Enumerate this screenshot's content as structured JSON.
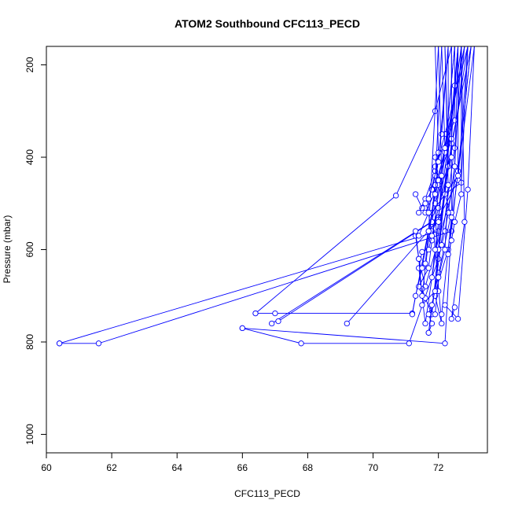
{
  "chart_data": {
    "type": "line",
    "title": "ATOM2 Southbound CFC113_PECD",
    "xlabel": "CFC113_PECD",
    "ylabel": "Pressure (mbar)",
    "xlim": [
      60,
      73.5
    ],
    "ylim": [
      1040,
      160
    ],
    "y_reversed": true,
    "x_ticks": [
      60,
      62,
      64,
      66,
      68,
      70,
      72
    ],
    "y_ticks": [
      200,
      400,
      600,
      800,
      1000
    ],
    "grid": false,
    "legend": "none",
    "series_color": "#0000ff",
    "marker": "open-circle",
    "series": [
      {
        "x": [
          60.4,
          61.6,
          72.4,
          73.0
        ],
        "y": [
          803,
          803,
          560,
          160
        ]
      },
      {
        "x": [
          60.4,
          72.0,
          72.9
        ],
        "y": [
          803,
          560,
          160
        ]
      },
      {
        "x": [
          66.0,
          67.8,
          71.1,
          72.0,
          72.6
        ],
        "y": [
          770,
          803,
          803,
          620,
          160
        ]
      },
      {
        "x": [
          66.0,
          72.2,
          72.7
        ],
        "y": [
          770,
          803,
          160
        ]
      },
      {
        "x": [
          66.4,
          67.0,
          71.2,
          72.8
        ],
        "y": [
          738,
          738,
          738,
          160
        ]
      },
      {
        "x": [
          66.9,
          72.0,
          72.7
        ],
        "y": [
          760,
          530,
          160
        ]
      },
      {
        "x": [
          67.1,
          71.8,
          72.8
        ],
        "y": [
          755,
          540,
          160
        ]
      },
      {
        "x": [
          69.2,
          72.0,
          72.5
        ],
        "y": [
          760,
          535,
          160
        ]
      },
      {
        "x": [
          66.4,
          70.7,
          71.9,
          72.4
        ],
        "y": [
          738,
          483,
          300,
          160
        ]
      },
      {
        "x": [
          71.3,
          71.5,
          71.9,
          72.2,
          72.9
        ],
        "y": [
          480,
          510,
          430,
          350,
          160
        ]
      },
      {
        "x": [
          71.3,
          71.4,
          71.6,
          72.6,
          73.0
        ],
        "y": [
          570,
          620,
          680,
          430,
          160
        ]
      },
      {
        "x": [
          71.4,
          71.6,
          71.8,
          72.6,
          72.9
        ],
        "y": [
          520,
          490,
          560,
          450,
          160
        ]
      },
      {
        "x": [
          71.5,
          71.6,
          71.8,
          72.5,
          72.6
        ],
        "y": [
          685,
          705,
          740,
          245,
          160
        ]
      },
      {
        "x": [
          71.5,
          71.4,
          71.6,
          72.4,
          73.0
        ],
        "y": [
          605,
          640,
          760,
          370,
          160
        ]
      },
      {
        "x": [
          71.7,
          71.8,
          71.7,
          72.3,
          73.1
        ],
        "y": [
          780,
          760,
          740,
          600,
          160
        ]
      },
      {
        "x": [
          71.8,
          71.7,
          72.5,
          72.8
        ],
        "y": [
          720,
          780,
          380,
          160
        ]
      },
      {
        "x": [
          71.9,
          72.1,
          71.8,
          72.6,
          72.6
        ],
        "y": [
          700,
          760,
          520,
          440,
          160
        ]
      },
      {
        "x": [
          72.0,
          71.8,
          72.4,
          72.4
        ],
        "y": [
          650,
          720,
          520,
          160
        ]
      },
      {
        "x": [
          72.1,
          72.4,
          72.2,
          72.7,
          72.9
        ],
        "y": [
          740,
          530,
          480,
          455,
          160
        ]
      },
      {
        "x": [
          72.2,
          72.6,
          72.9,
          73.1
        ],
        "y": [
          720,
          750,
          470,
          160
        ]
      },
      {
        "x": [
          72.5,
          72.4,
          72.8,
          72.7
        ],
        "y": [
          725,
          750,
          540,
          160
        ]
      },
      {
        "x": [
          71.6,
          72.0,
          71.9,
          72.5,
          72.5
        ],
        "y": [
          520,
          460,
          420,
          320,
          160
        ]
      },
      {
        "x": [
          71.8,
          71.9,
          72.2,
          72.5
        ],
        "y": [
          540,
          460,
          390,
          160
        ]
      },
      {
        "x": [
          72.0,
          71.9,
          72.3,
          72.3
        ],
        "y": [
          690,
          500,
          420,
          160
        ]
      },
      {
        "x": [
          71.9,
          72.0,
          72.4,
          72.6
        ],
        "y": [
          400,
          450,
          360,
          160
        ]
      },
      {
        "x": [
          71.3,
          71.4,
          71.5,
          71.9,
          72.1
        ],
        "y": [
          560,
          620,
          700,
          460,
          160
        ]
      },
      {
        "x": [
          71.4,
          71.7,
          71.8,
          72.2,
          72.1
        ],
        "y": [
          680,
          640,
          580,
          380,
          160
        ]
      },
      {
        "x": [
          71.5,
          71.9,
          72.0,
          72.3,
          72.2
        ],
        "y": [
          720,
          690,
          600,
          420,
          160
        ]
      },
      {
        "x": [
          71.6,
          71.8,
          71.9,
          72.1,
          72.3
        ],
        "y": [
          500,
          470,
          440,
          350,
          160
        ]
      },
      {
        "x": [
          71.7,
          71.8,
          72.0,
          72.4,
          72.4
        ],
        "y": [
          600,
          570,
          510,
          400,
          160
        ]
      },
      {
        "x": [
          72.1,
          72.2,
          72.3,
          72.5,
          72.6
        ],
        "y": [
          590,
          560,
          520,
          420,
          160
        ]
      },
      {
        "x": [
          71.6,
          71.7,
          71.9,
          72.0,
          71.9
        ],
        "y": [
          630,
          560,
          480,
          390,
          160
        ]
      },
      {
        "x": [
          71.8,
          71.9,
          72.0,
          72.1,
          72.0
        ],
        "y": [
          660,
          600,
          540,
          440,
          160
        ]
      },
      {
        "x": [
          72.3,
          72.4,
          72.5,
          72.7,
          72.7
        ],
        "y": [
          610,
          580,
          540,
          480,
          160
        ]
      },
      {
        "x": [
          71.2,
          71.3,
          71.5,
          71.7,
          72.0
        ],
        "y": [
          740,
          700,
          640,
          560,
          160
        ]
      },
      {
        "x": [
          71.9,
          72.0,
          72.2,
          72.3,
          72.2
        ],
        "y": [
          740,
          660,
          600,
          460,
          160
        ]
      },
      {
        "x": [
          71.4,
          71.7,
          71.7,
          72.0,
          72.3
        ],
        "y": [
          570,
          520,
          490,
          410,
          160
        ]
      }
    ]
  }
}
